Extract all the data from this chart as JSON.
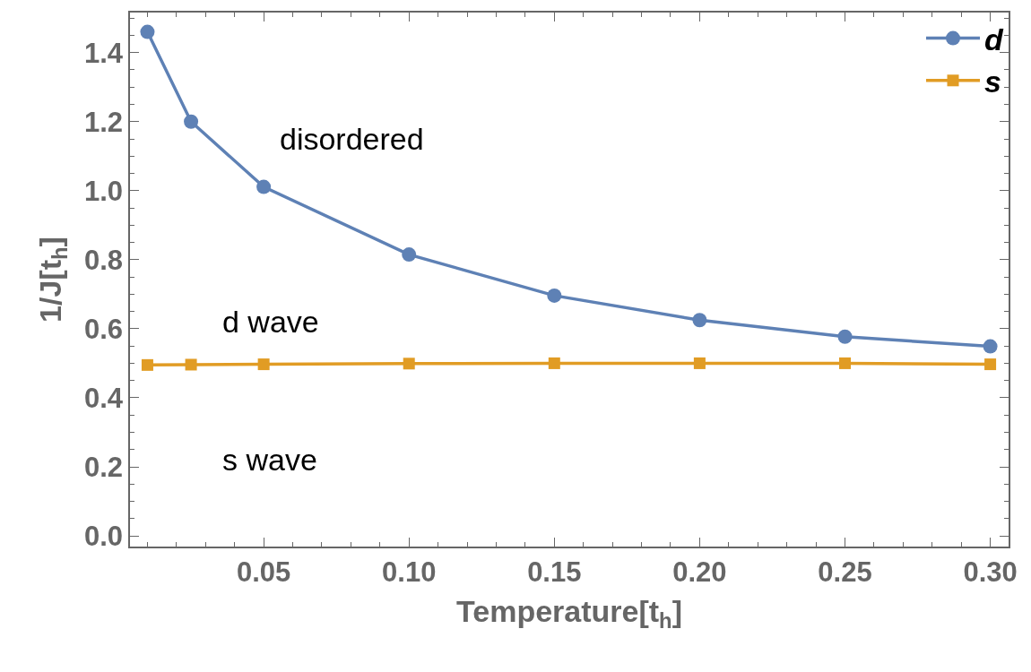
{
  "chart_data": {
    "type": "line",
    "xlabel": "Temperature[t$_{h}$]",
    "ylabel": "1/J[t$_{h}$]",
    "x": [
      0.01,
      0.025,
      0.05,
      0.1,
      0.15,
      0.2,
      0.25,
      0.3
    ],
    "series": [
      {
        "name": "d",
        "color": "#5e81b5",
        "marker": "circle",
        "values": [
          1.46,
          1.2,
          1.011,
          0.815,
          0.696,
          0.625,
          0.577,
          0.549
        ]
      },
      {
        "name": "s",
        "color": "#e19c24",
        "marker": "square",
        "values": [
          0.495,
          0.496,
          0.497,
          0.499,
          0.5,
          0.5,
          0.5,
          0.497
        ]
      }
    ],
    "annotations": [
      "disordered",
      "d wave",
      "s wave"
    ],
    "xlim": [
      0.004,
      0.3063
    ],
    "xticks": [
      {
        "value": 0.05,
        "label": "0.05"
      },
      {
        "value": 0.1,
        "label": "0.10"
      },
      {
        "value": 0.15,
        "label": "0.15"
      },
      {
        "value": 0.2,
        "label": "0.20"
      },
      {
        "value": 0.25,
        "label": "0.25"
      },
      {
        "value": 0.3,
        "label": "0.30"
      }
    ],
    "ylim": [
      -0.031,
      1.516
    ],
    "yticks": [
      {
        "value": 0,
        "label": "0.0"
      },
      0.2,
      0.4,
      0.6,
      0.8,
      {
        "value": 1,
        "label": "1.0"
      },
      1.2,
      1.4
    ],
    "legend": "top right",
    "line_style": "solid"
  }
}
